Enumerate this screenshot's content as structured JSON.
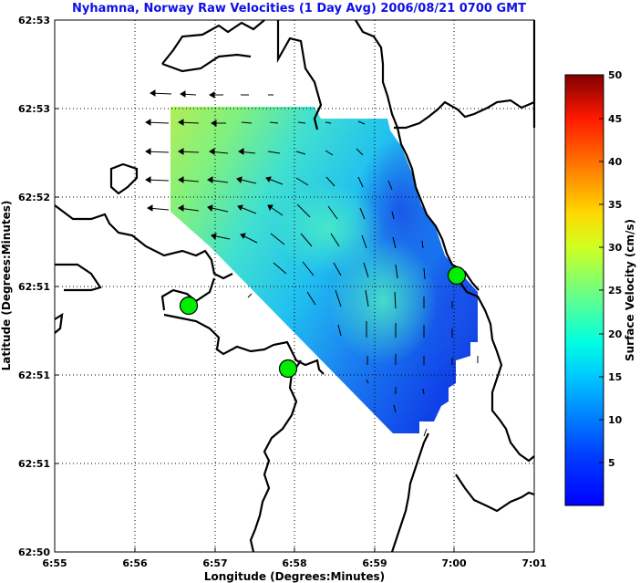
{
  "chart_data": {
    "type": "heatmap",
    "title": "Nyhamna, Norway Raw Velocities (1 Day Avg) 2006/08/21 0700 GMT",
    "xlabel": "Longitude (Degrees:Minutes)",
    "ylabel": "Latitude (Degrees:Minutes)",
    "colorbar_label": "Surface Velocity (cm/s)",
    "x_ticks": [
      "6:55",
      "6:56",
      "6:57",
      "6:58",
      "6:59",
      "7:00",
      "7:01"
    ],
    "y_ticks": [
      "62:50",
      "62:51",
      "62:51",
      "62:51",
      "62:52",
      "62:53",
      "62:53"
    ],
    "colorbar_ticks": [
      "5",
      "10",
      "15",
      "20",
      "25",
      "30",
      "35",
      "40",
      "45",
      "50"
    ],
    "colorbar_range": [
      0,
      50
    ],
    "grid": true,
    "stations": [
      {
        "lon": 6.9452,
        "lat": 62.8548
      },
      {
        "lon": 6.9653,
        "lat": 62.847
      },
      {
        "lon": 7.0,
        "lat": 62.8571
      }
    ]
  }
}
